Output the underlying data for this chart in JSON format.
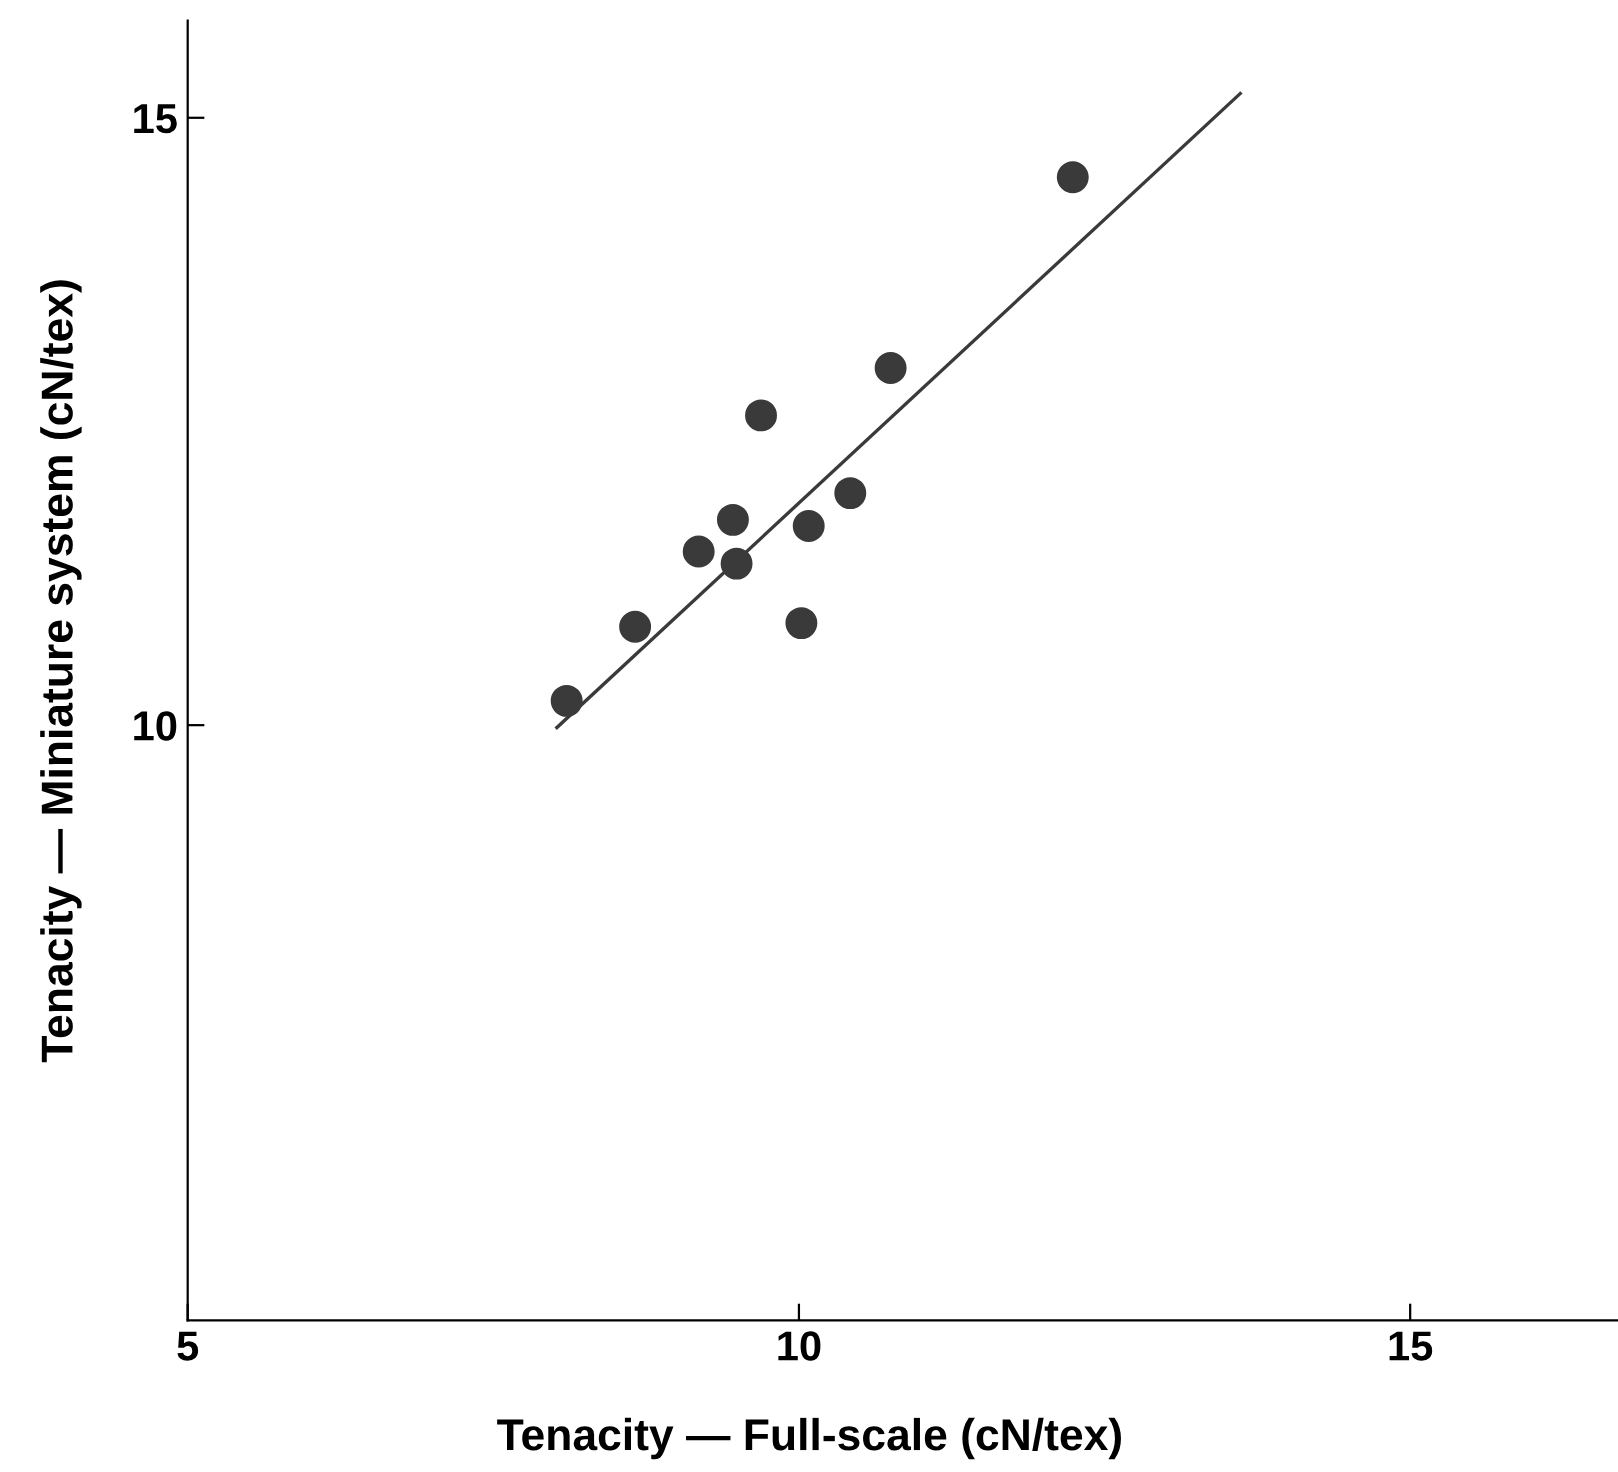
{
  "chart_data": {
    "type": "scatter",
    "xlabel": "Tenacity — Full-scale (cN/tex)",
    "ylabel": "Tenacity — Miniature system (cN/tex)",
    "series": [
      {
        "color": "#3a3a3a",
        "marker": "circle",
        "x": [
          8.1,
          8.66,
          9.18,
          9.46,
          9.49,
          9.69,
          10.02,
          10.08,
          10.42,
          10.75,
          12.24
        ],
        "values": [
          10.2,
          10.81,
          11.43,
          11.69,
          11.33,
          12.55,
          10.84,
          11.64,
          11.91,
          12.94,
          14.51
        ]
      },
      {
        "type": "line",
        "color": "#3a3a3a",
        "marker": "none",
        "line_style": "solid",
        "x": [
          8.02,
          13.61
        ],
        "values": [
          9.98,
          15.2
        ]
      }
    ],
    "xlim": [
      5,
      16.7
    ],
    "ylim": [
      5.1,
      15.8
    ],
    "xticks": [
      5,
      10,
      15
    ],
    "yticks": [
      10,
      15
    ],
    "grid": false,
    "legend": false
  }
}
